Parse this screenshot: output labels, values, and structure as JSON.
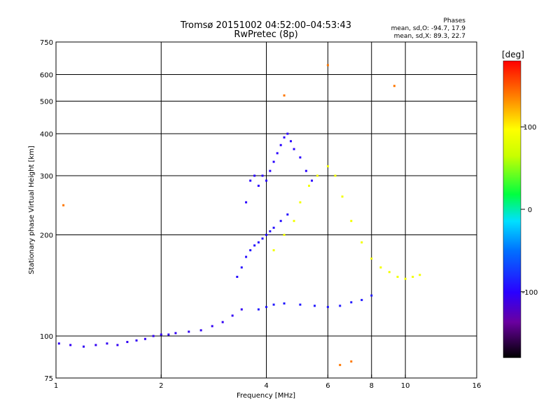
{
  "title": {
    "line1": "Tromsø 20151002 04:52:00–04:53:43",
    "line2": "RwPretec (8p)"
  },
  "stats": {
    "header": "Phases",
    "o_line": "mean, sd,O: -94.7, 17.9",
    "x_line": "mean, sd,X: 89.3, 22.7"
  },
  "colorbar": {
    "unit_label": "[deg]",
    "tick_labels": [
      "100",
      "0",
      "-100"
    ],
    "tick_values": [
      100,
      0,
      -100
    ],
    "range": [
      -180,
      180
    ]
  },
  "chart_data": {
    "type": "scatter",
    "xlabel": "Frequency [MHz]",
    "ylabel": "Stationary phase Virtual Height [km]",
    "x_scale": "log",
    "y_scale": "log",
    "xlim": [
      1,
      16
    ],
    "ylim": [
      75,
      750
    ],
    "x_ticks": [
      1,
      2,
      4,
      6,
      8,
      10,
      16
    ],
    "x_tick_labels": [
      "1",
      "2",
      "4",
      "6",
      "8",
      "10",
      "16"
    ],
    "y_ticks": [
      75,
      100,
      200,
      300,
      400,
      500,
      600,
      750
    ],
    "y_tick_labels": [
      "75",
      "100",
      "200",
      "300",
      "400",
      "500",
      "600",
      "750"
    ],
    "grid_x": [
      2,
      4,
      6,
      8,
      10
    ],
    "grid_y": [
      100,
      200,
      300,
      400,
      500,
      600
    ],
    "colorscale": "rainbow (phase in deg, -180 black to 180 red)",
    "point_groups": [
      {
        "id": "E-region trace",
        "phase_deg": -105,
        "points": [
          [
            1.02,
            95
          ],
          [
            1.1,
            94
          ],
          [
            1.2,
            93
          ],
          [
            1.3,
            94
          ],
          [
            1.4,
            95
          ],
          [
            1.5,
            94
          ],
          [
            1.6,
            96
          ],
          [
            1.7,
            97
          ],
          [
            1.8,
            98
          ],
          [
            1.9,
            100
          ],
          [
            2.0,
            101
          ],
          [
            2.1,
            101
          ],
          [
            2.2,
            102
          ],
          [
            2.4,
            103
          ],
          [
            2.6,
            104
          ],
          [
            2.8,
            107
          ],
          [
            3.0,
            110
          ],
          [
            3.2,
            115
          ],
          [
            3.4,
            120
          ]
        ]
      },
      {
        "id": "O-mode lower F trace",
        "phase_deg": -95,
        "points": [
          [
            3.3,
            150
          ],
          [
            3.4,
            160
          ],
          [
            3.5,
            172
          ],
          [
            3.6,
            180
          ],
          [
            3.7,
            186
          ],
          [
            3.8,
            190
          ],
          [
            3.9,
            195
          ],
          [
            4.0,
            200
          ],
          [
            4.1,
            205
          ],
          [
            4.2,
            210
          ],
          [
            4.4,
            220
          ],
          [
            4.6,
            230
          ]
        ]
      },
      {
        "id": "O-mode F2 trace",
        "phase_deg": -100,
        "points": [
          [
            3.5,
            250
          ],
          [
            3.6,
            290
          ],
          [
            3.7,
            300
          ],
          [
            3.8,
            280
          ],
          [
            3.9,
            300
          ],
          [
            4.0,
            290
          ],
          [
            4.1,
            310
          ],
          [
            4.2,
            330
          ],
          [
            4.3,
            350
          ],
          [
            4.4,
            370
          ],
          [
            4.5,
            390
          ],
          [
            4.6,
            400
          ],
          [
            4.7,
            380
          ],
          [
            4.8,
            360
          ],
          [
            5.0,
            340
          ],
          [
            5.2,
            310
          ],
          [
            5.4,
            290
          ]
        ]
      },
      {
        "id": "O-mode bottom trace",
        "phase_deg": -90,
        "points": [
          [
            3.8,
            120
          ],
          [
            4.0,
            122
          ],
          [
            4.2,
            124
          ],
          [
            4.5,
            125
          ],
          [
            5.0,
            124
          ],
          [
            5.5,
            123
          ],
          [
            6.0,
            122
          ],
          [
            6.5,
            123
          ],
          [
            7.0,
            126
          ],
          [
            7.5,
            128
          ],
          [
            8.0,
            132
          ]
        ]
      },
      {
        "id": "X-mode traces",
        "phase_deg": 90,
        "points": [
          [
            4.2,
            180
          ],
          [
            4.5,
            200
          ],
          [
            4.8,
            220
          ],
          [
            5.0,
            250
          ],
          [
            5.3,
            280
          ],
          [
            5.6,
            300
          ],
          [
            6.0,
            320
          ],
          [
            6.3,
            300
          ],
          [
            6.6,
            260
          ],
          [
            7.0,
            220
          ],
          [
            7.5,
            190
          ],
          [
            8.0,
            170
          ],
          [
            8.5,
            160
          ],
          [
            9.0,
            155
          ],
          [
            9.5,
            150
          ],
          [
            10.0,
            148
          ],
          [
            10.5,
            150
          ],
          [
            11.0,
            152
          ]
        ]
      },
      {
        "id": "Outliers",
        "phase_deg": 140,
        "points": [
          [
            1.05,
            245
          ],
          [
            6.0,
            640
          ],
          [
            9.3,
            555
          ],
          [
            4.5,
            520
          ],
          [
            6.5,
            82
          ],
          [
            7.0,
            84
          ]
        ]
      }
    ]
  }
}
